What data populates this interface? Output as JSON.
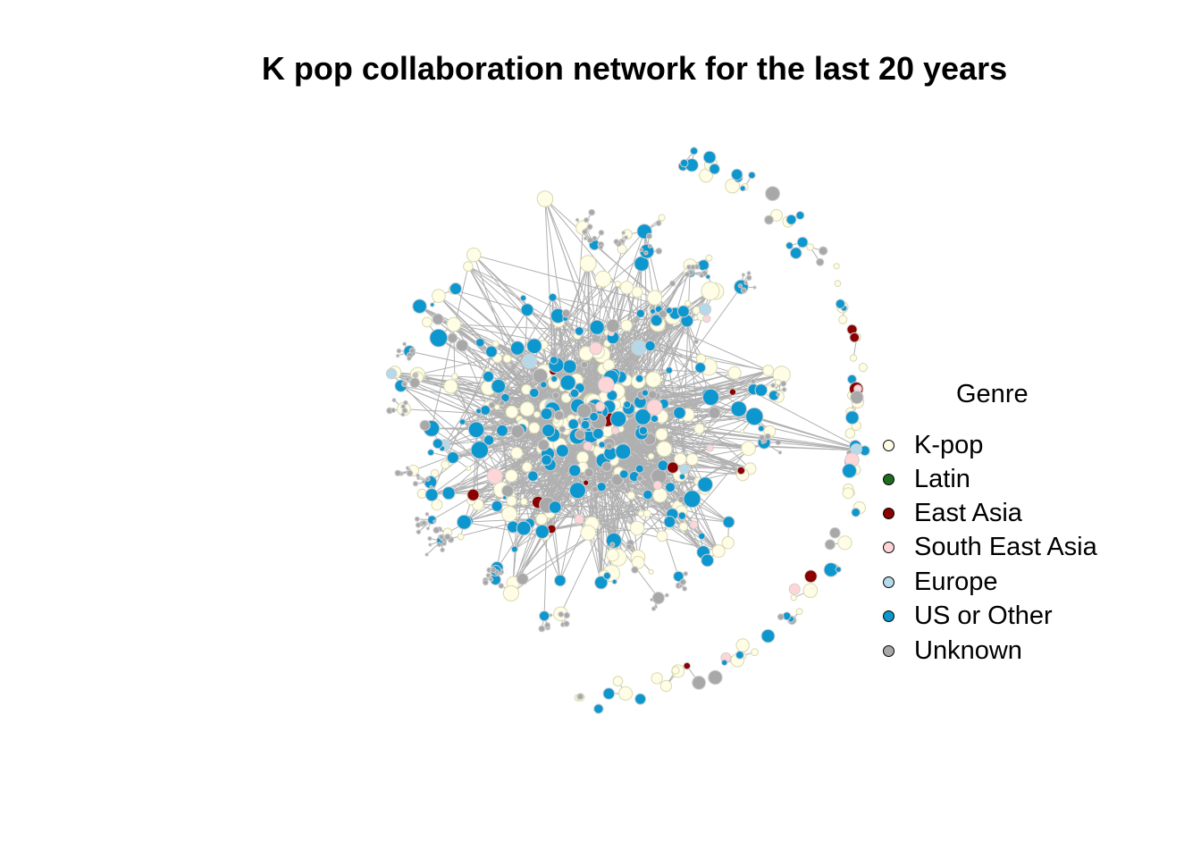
{
  "title": "K pop collaboration network for the last 20 years",
  "legend": {
    "title": "Genre",
    "items": [
      {
        "label": "K-pop",
        "color": "#fffde6",
        "name": "legend-item-kpop"
      },
      {
        "label": "Latin",
        "color": "#1f6b1f",
        "name": "legend-item-latin"
      },
      {
        "label": "East Asia",
        "color": "#8b0000",
        "name": "legend-item-east-asia"
      },
      {
        "label": "South East Asia",
        "color": "#ffd5d8",
        "name": "legend-item-south-east-asia"
      },
      {
        "label": "Europe",
        "color": "#b5d9e8",
        "name": "legend-item-europe"
      },
      {
        "label": "US or Other",
        "color": "#0c97cf",
        "name": "legend-item-us-or-other"
      },
      {
        "label": "Unknown",
        "color": "#a8a8a8",
        "name": "legend-item-unknown"
      }
    ]
  },
  "colors": {
    "edge": "#b0b0b0",
    "node_border_kpop": "#d8d8b0",
    "node_border_default": "#cfcfcf"
  },
  "chart_data": {
    "type": "network",
    "title": "K pop collaboration network for the last 20 years",
    "legend_title": "Genre",
    "legend_position": "right",
    "categories": [
      "K-pop",
      "Latin",
      "East Asia",
      "South East Asia",
      "Europe",
      "US or Other",
      "Unknown"
    ],
    "approximate_node_share": {
      "K-pop": 0.46,
      "Latin": 0.0,
      "East Asia": 0.025,
      "South East Asia": 0.03,
      "Europe": 0.02,
      "US or Other": 0.33,
      "Unknown": 0.135
    }
  }
}
